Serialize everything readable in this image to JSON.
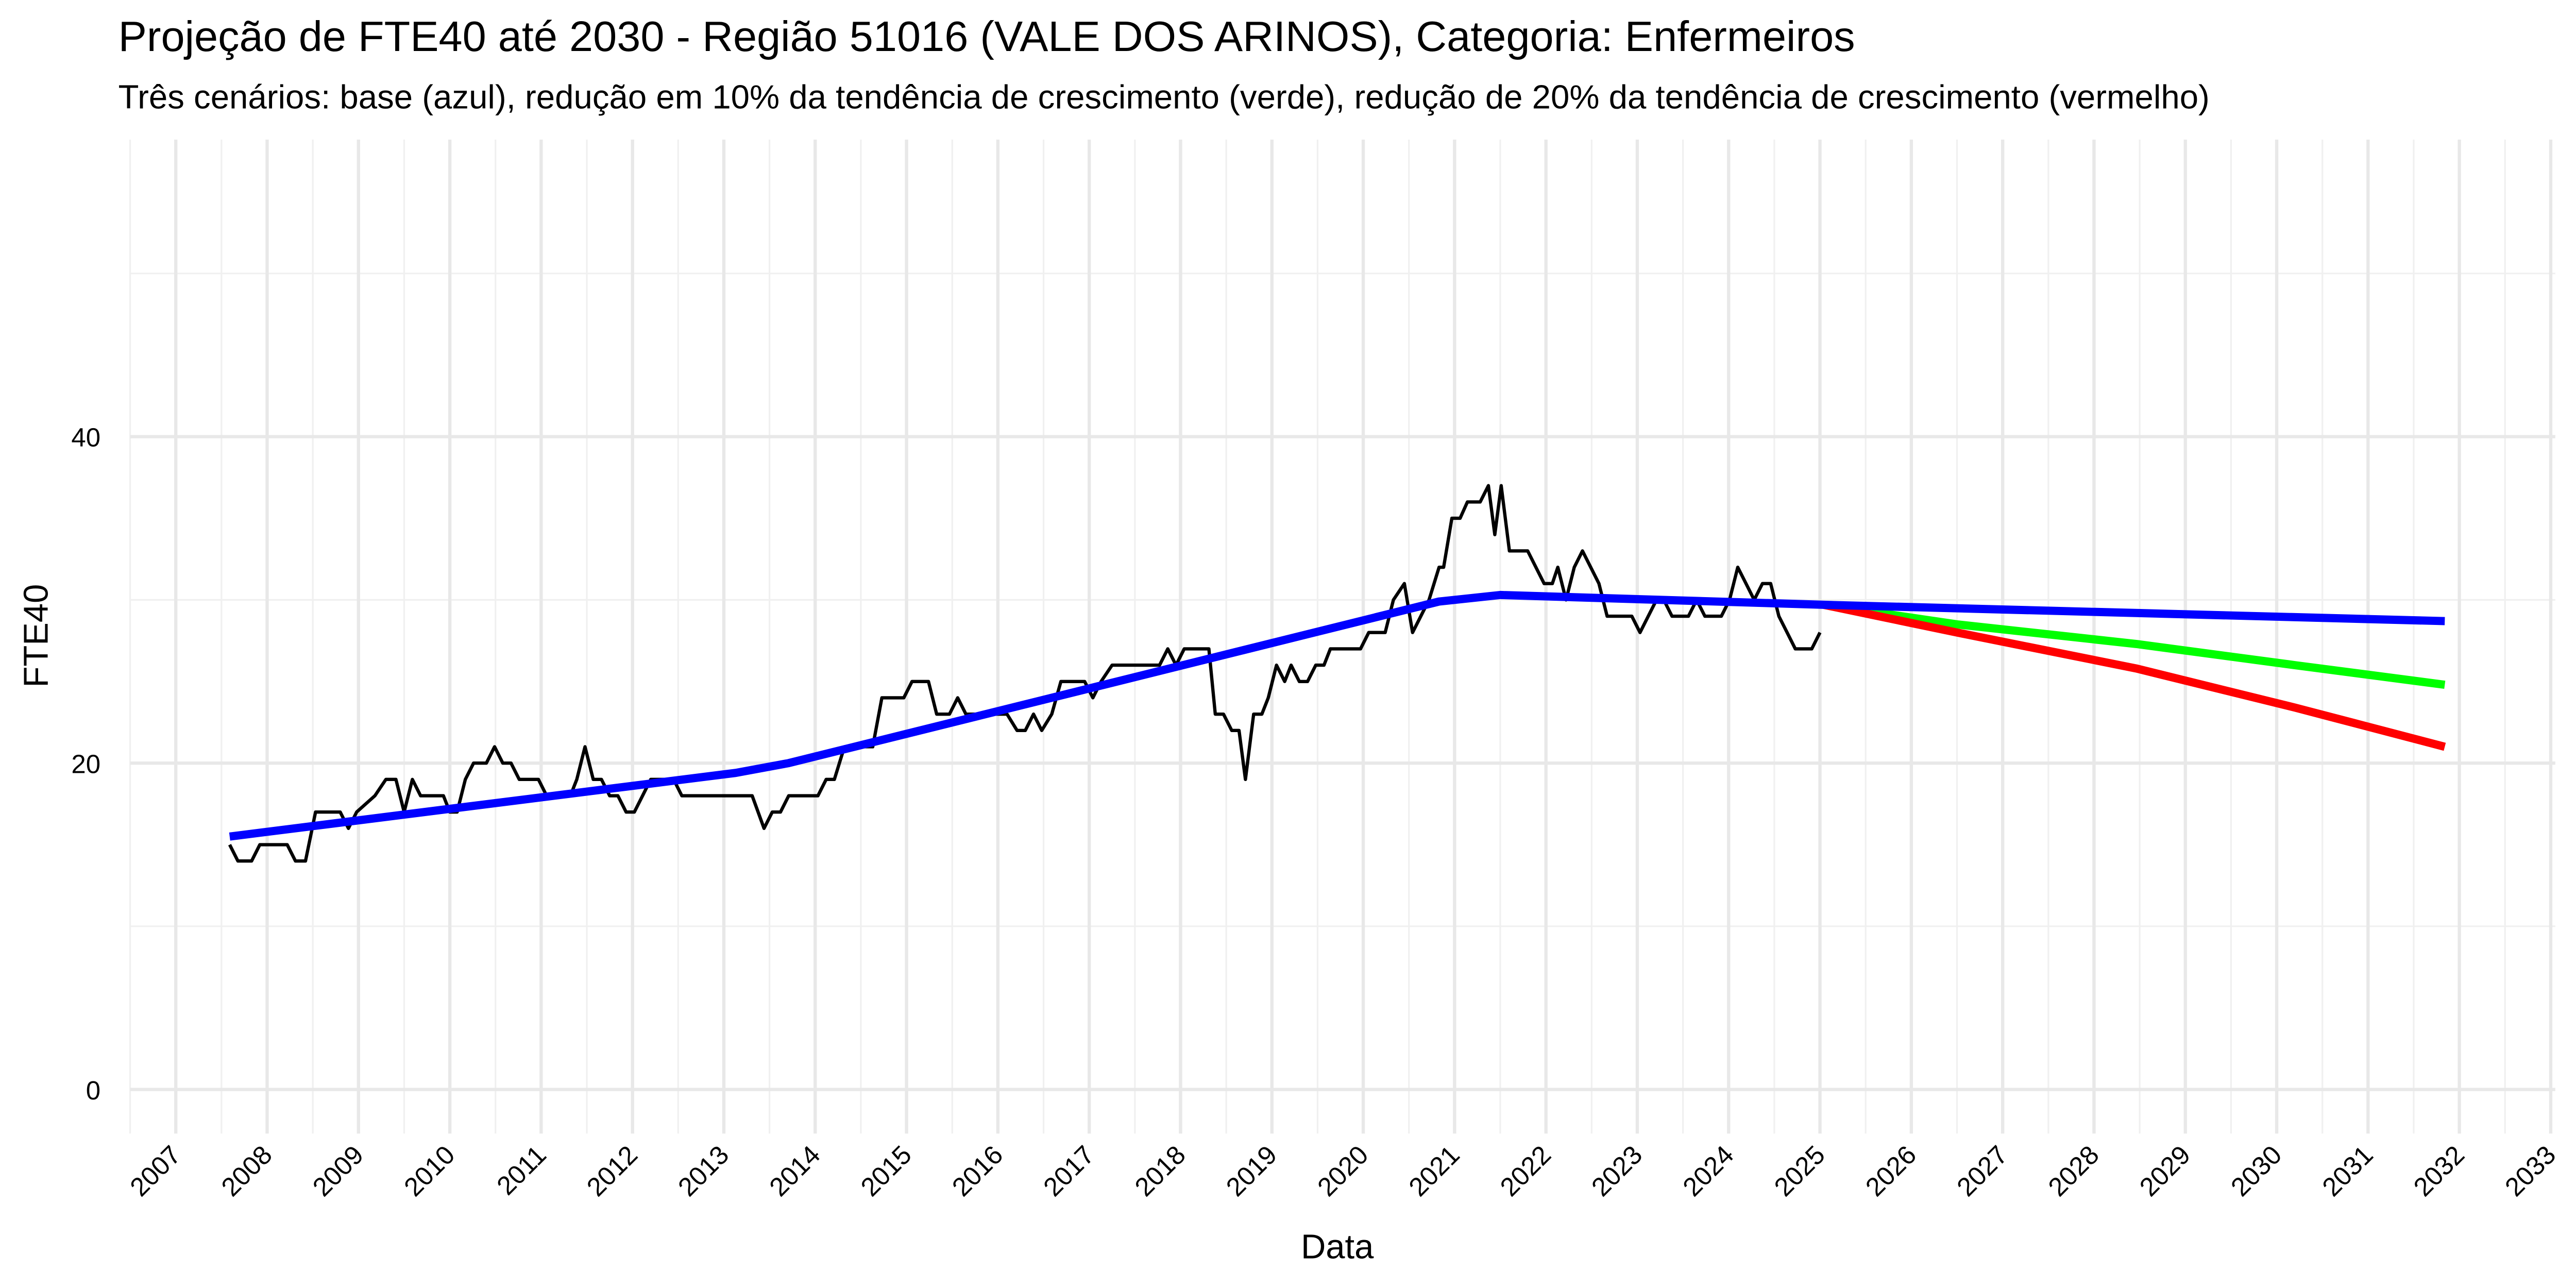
{
  "chart_data": {
    "type": "line",
    "title": "Projeção de FTE40 até 2030 - Região 51016 (VALE DOS ARINOS), Categoria: Enfermeiros",
    "subtitle": "Três cenários: base (azul), redução em 10% da tendência de crescimento (verde), redução de 20% da tendência de crescimento (vermelho)",
    "x_label": "Data",
    "y_label": "FTE40",
    "xlim": [
      2006.5,
      2033.05
    ],
    "xticks": [
      2007,
      2008,
      2009,
      2010,
      2011,
      2012,
      2013,
      2014,
      2015,
      2016,
      2017,
      2018,
      2019,
      2020,
      2021,
      2022,
      2023,
      2024,
      2025,
      2026,
      2027,
      2028,
      2029,
      2030,
      2031,
      2032,
      2033
    ],
    "ylim": [
      -2.7,
      58.2
    ],
    "yticks": [
      0,
      20,
      40
    ],
    "grid": true,
    "series": [
      {
        "color": "#000000",
        "x": [
          2007.59,
          2007.68,
          2007.83,
          2007.92,
          2008.22,
          2008.31,
          2008.42,
          2008.53,
          2008.8,
          2008.89,
          2008.98,
          2009.18,
          2009.3,
          2009.41,
          2009.5,
          2009.59,
          2009.68,
          2009.93,
          2010.0,
          2010.08,
          2010.17,
          2010.26,
          2010.4,
          2010.49,
          2010.58,
          2010.67,
          2010.76,
          2010.97,
          2011.06,
          2011.32,
          2011.39,
          2011.48,
          2011.57,
          2011.66,
          2011.75,
          2011.84,
          2011.93,
          2012.02,
          2012.11,
          2012.2,
          2012.45,
          2012.54,
          2013.31,
          2013.44,
          2013.53,
          2013.62,
          2013.71,
          2014.03,
          2014.12,
          2014.21,
          2014.32,
          2014.63,
          2014.73,
          2014.97,
          2015.06,
          2015.24,
          2015.33,
          2015.47,
          2015.56,
          2015.65,
          2016.1,
          2016.21,
          2016.3,
          2016.39,
          2016.48,
          2016.59,
          2016.69,
          2016.95,
          2017.04,
          2017.13,
          2017.25,
          2017.77,
          2017.86,
          2017.95,
          2018.04,
          2018.31,
          2018.38,
          2018.47,
          2018.56,
          2018.64,
          2018.71,
          2018.8,
          2018.89,
          2018.96,
          2019.05,
          2019.14,
          2019.21,
          2019.3,
          2019.39,
          2019.48,
          2019.57,
          2019.64,
          2019.97,
          2020.06,
          2020.24,
          2020.33,
          2020.45,
          2020.54,
          2020.63,
          2020.72,
          2020.83,
          2020.88,
          2020.97,
          2021.06,
          2021.14,
          2021.28,
          2021.37,
          2021.44,
          2021.51,
          2021.6,
          2021.8,
          2021.89,
          2021.98,
          2022.07,
          2022.13,
          2022.22,
          2022.31,
          2022.4,
          2022.49,
          2022.58,
          2022.67,
          2022.94,
          2023.03,
          2023.12,
          2023.21,
          2023.29,
          2023.38,
          2023.56,
          2023.65,
          2023.74,
          2023.92,
          2024.01,
          2024.1,
          2024.19,
          2024.28,
          2024.37,
          2024.46,
          2024.55,
          2024.64,
          2024.73,
          2024.91,
          2025.0
        ],
        "values": [
          15,
          14,
          14,
          15,
          15,
          14,
          14,
          17,
          17,
          16,
          17,
          18,
          19,
          19,
          17,
          19,
          18,
          18,
          17,
          17,
          19,
          20,
          20,
          21,
          20,
          20,
          19,
          19,
          18,
          18,
          19,
          21,
          19,
          19,
          18,
          18,
          17,
          17,
          18,
          19,
          19,
          18,
          18,
          16,
          17,
          17,
          18,
          18,
          19,
          19,
          21,
          21,
          24,
          24,
          25,
          25,
          23,
          23,
          24,
          23,
          23,
          22,
          22,
          23,
          22,
          23,
          25,
          25,
          24,
          25,
          26,
          26,
          27,
          26,
          27,
          27,
          23,
          23,
          22,
          22,
          19,
          23,
          23,
          24,
          26,
          25,
          26,
          25,
          25,
          26,
          26,
          27,
          27,
          28,
          28,
          30,
          31,
          28,
          29,
          30,
          32,
          32,
          35,
          35,
          36,
          36,
          37,
          34,
          37,
          33,
          33,
          32,
          31,
          31,
          32,
          30,
          32,
          33,
          32,
          31,
          29,
          29,
          28,
          29,
          30,
          30,
          29,
          29,
          30,
          29,
          29,
          30,
          32,
          31,
          30,
          31,
          31,
          29,
          28,
          27,
          27,
          28
        ]
      },
      {
        "color": "#00ff00",
        "x": [
          2025.04,
          2026.5,
          2028.46,
          2030.2,
          2031.84
        ],
        "values": [
          29.7,
          28.5,
          27.3,
          26.0,
          24.8
        ]
      },
      {
        "color": "#ff0000",
        "x": [
          2025.04,
          2026.5,
          2028.46,
          2030.2,
          2031.84
        ],
        "values": [
          29.7,
          28.0,
          25.8,
          23.4,
          21.0
        ]
      },
      {
        "color": "#0000ff",
        "x": [
          2007.59,
          2013.13,
          2013.71,
          2020.83,
          2021.5,
          2025.04,
          2031.84
        ],
        "values": [
          15.5,
          19.4,
          20.0,
          29.9,
          30.3,
          29.7,
          28.7
        ]
      }
    ]
  }
}
